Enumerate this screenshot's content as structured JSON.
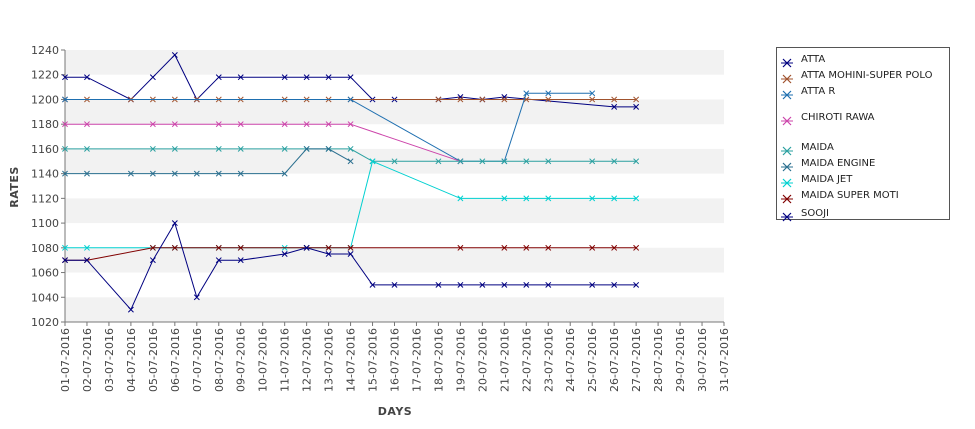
{
  "chart_data": {
    "type": "line",
    "xlabel": "DAYS",
    "ylabel": "RATES",
    "ylim": [
      1020,
      1240
    ],
    "yticks": [
      1020,
      1040,
      1060,
      1080,
      1100,
      1120,
      1140,
      1160,
      1180,
      1200,
      1220,
      1240
    ],
    "categories": [
      "01-07-2016",
      "02-07-2016",
      "03-07-2016",
      "04-07-2016",
      "05-07-2016",
      "06-07-2016",
      "07-07-2016",
      "08-07-2016",
      "09-07-2016",
      "10-07-2016",
      "11-07-2016",
      "12-07-2016",
      "13-07-2016",
      "14-07-2016",
      "15-07-2016",
      "16-07-2016",
      "17-07-2016",
      "18-07-2016",
      "19-07-2016",
      "20-07-2016",
      "21-07-2016",
      "22-07-2016",
      "23-07-2016",
      "24-07-2016",
      "25-07-2016",
      "26-07-2016",
      "27-07-2016",
      "28-07-2016",
      "29-07-2016",
      "30-07-2016",
      "31-07-2016"
    ],
    "grid": "alternating horizontal bands",
    "legend_position": "right",
    "series": [
      {
        "name": "ATTA",
        "color": "#000080",
        "values": [
          1218,
          1218,
          null,
          1200,
          1218,
          1236,
          1200,
          1218,
          1218,
          null,
          1218,
          1218,
          1218,
          1218,
          1200,
          1200,
          null,
          1200,
          1202,
          1200,
          1202,
          null,
          null,
          null,
          null,
          1194,
          1194,
          null,
          null,
          null,
          null
        ]
      },
      {
        "name": "ATTA MOHINI-SUPER POLO",
        "color": "#a0522d",
        "values": [
          1200,
          1200,
          null,
          1200,
          1200,
          1200,
          1200,
          1200,
          1200,
          null,
          1200,
          1200,
          1200,
          1200,
          null,
          null,
          null,
          1200,
          1200,
          1200,
          1200,
          1200,
          1200,
          null,
          1200,
          1200,
          1200,
          null,
          null,
          null,
          null
        ]
      },
      {
        "name": "ATTA R",
        "color": "#1e6fb0",
        "values": [
          1200,
          null,
          null,
          null,
          null,
          null,
          null,
          null,
          null,
          null,
          null,
          null,
          null,
          1200,
          null,
          null,
          null,
          null,
          1150,
          null,
          1150,
          1205,
          1205,
          null,
          1205,
          null,
          null,
          null,
          null,
          null,
          null
        ]
      },
      {
        "name": "CHIROTI RAWA",
        "color": "#cc44aa",
        "values": [
          1180,
          1180,
          null,
          null,
          1180,
          1180,
          null,
          1180,
          1180,
          null,
          1180,
          1180,
          1180,
          1180,
          null,
          null,
          null,
          null,
          1150,
          null,
          null,
          null,
          null,
          null,
          null,
          null,
          null,
          null,
          null,
          null,
          null
        ]
      },
      {
        "name": "MAIDA",
        "color": "#2aa0a0",
        "values": [
          1160,
          1160,
          null,
          null,
          1160,
          1160,
          null,
          1160,
          1160,
          null,
          1160,
          1160,
          1160,
          1160,
          1150,
          1150,
          null,
          1150,
          1150,
          1150,
          1150,
          1150,
          1150,
          null,
          1150,
          1150,
          1150,
          null,
          null,
          null,
          null
        ]
      },
      {
        "name": "MAIDA ENGINE",
        "color": "#2a6f8f",
        "values": [
          1140,
          1140,
          null,
          1140,
          1140,
          1140,
          1140,
          1140,
          1140,
          null,
          1140,
          1160,
          1160,
          1150,
          null,
          null,
          null,
          null,
          null,
          null,
          null,
          null,
          null,
          null,
          null,
          null,
          null,
          null,
          null,
          null,
          null
        ]
      },
      {
        "name": "MAIDA JET",
        "color": "#00d0d0",
        "values": [
          1080,
          1080,
          null,
          null,
          1080,
          1080,
          null,
          1080,
          1080,
          null,
          1080,
          1080,
          1080,
          1080,
          1150,
          null,
          null,
          null,
          1120,
          null,
          1120,
          1120,
          1120,
          null,
          1120,
          1120,
          1120,
          null,
          null,
          null,
          null
        ]
      },
      {
        "name": "MAIDA SUPER MOTI",
        "color": "#800000",
        "values": [
          1070,
          1070,
          null,
          null,
          1080,
          1080,
          null,
          1080,
          1080,
          null,
          null,
          1080,
          1080,
          1080,
          null,
          null,
          null,
          null,
          1080,
          null,
          1080,
          1080,
          1080,
          null,
          1080,
          1080,
          1080,
          null,
          null,
          null,
          null
        ]
      },
      {
        "name": "SOOJI",
        "color": "#000080",
        "values": [
          1070,
          1070,
          null,
          1030,
          1070,
          1100,
          1040,
          1070,
          1070,
          null,
          1075,
          1080,
          1075,
          1075,
          1050,
          1050,
          null,
          1050,
          1050,
          1050,
          1050,
          1050,
          1050,
          null,
          1050,
          1050,
          1050,
          null,
          null,
          null,
          null
        ]
      }
    ]
  }
}
